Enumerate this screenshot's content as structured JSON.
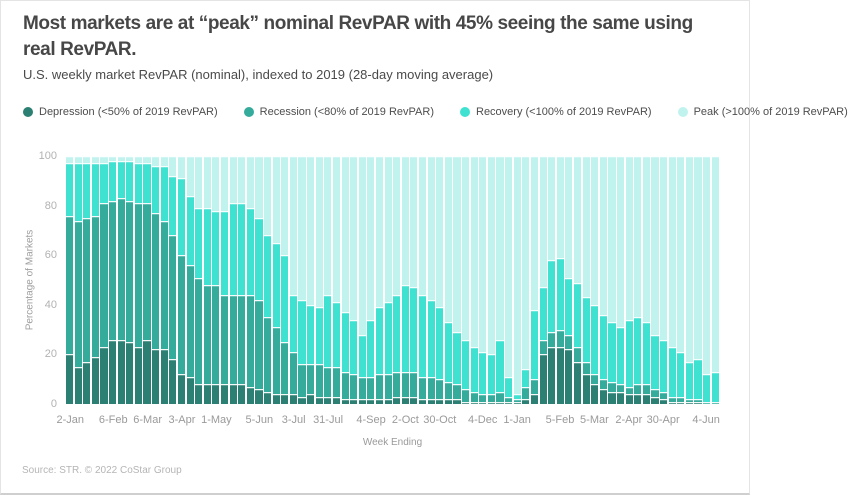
{
  "header": {
    "title_line1": "Most markets are at “peak” nominal RevPAR with 45% seeing the same using",
    "title_line2": "real RevPAR.",
    "subtitle": "U.S. weekly market RevPAR (nominal), indexed to 2019 (28-day moving average)"
  },
  "footer": {
    "source": "Source: STR. © 2022 CoStar Group"
  },
  "colors": {
    "depression": "#2b8073",
    "recession": "#35ab9c",
    "recovery": "#3fe2d1",
    "peak": "#c0f3ee",
    "title_text": "#474747",
    "axis_text": "#9a9a9a"
  },
  "chart_data": {
    "type": "bar",
    "stacked": true,
    "title": "U.S. weekly market RevPAR (nominal), indexed to 2019 (28-day moving average)",
    "xlabel": "Week Ending",
    "ylabel": "Percentage of Markets",
    "ylim": [
      0,
      100
    ],
    "yticks": [
      0,
      20,
      40,
      60,
      80,
      100
    ],
    "grid": false,
    "legend_position": "top",
    "num_bars": 76,
    "x_tick_labels": [
      {
        "label": "2-Jan",
        "index": 0
      },
      {
        "label": "6-Feb",
        "index": 5
      },
      {
        "label": "6-Mar",
        "index": 9
      },
      {
        "label": "3-Apr",
        "index": 13
      },
      {
        "label": "1-May",
        "index": 17
      },
      {
        "label": "5-Jun",
        "index": 22
      },
      {
        "label": "3-Jul",
        "index": 26
      },
      {
        "label": "31-Jul",
        "index": 30
      },
      {
        "label": "4-Sep",
        "index": 35
      },
      {
        "label": "2-Oct",
        "index": 39
      },
      {
        "label": "30-Oct",
        "index": 43
      },
      {
        "label": "4-Dec",
        "index": 48
      },
      {
        "label": "1-Jan",
        "index": 52
      },
      {
        "label": "5-Feb",
        "index": 57
      },
      {
        "label": "5-Mar",
        "index": 61
      },
      {
        "label": "2-Apr",
        "index": 65
      },
      {
        "label": "30-Apr",
        "index": 69
      },
      {
        "label": "4-Jun",
        "index": 74
      }
    ],
    "series": [
      {
        "name": "Depression (<50% of 2019 RevPAR)",
        "color": "#2b8073",
        "values": [
          20,
          15,
          17,
          19,
          23,
          26,
          26,
          25,
          23,
          26,
          22,
          22,
          18,
          12,
          11,
          8,
          8,
          8,
          8,
          8,
          8,
          7,
          6,
          5,
          4,
          4,
          4,
          3,
          4,
          3,
          3,
          3,
          2,
          2,
          2,
          2,
          2,
          2,
          3,
          3,
          3,
          2,
          2,
          2,
          2,
          2,
          1,
          1,
          1,
          1,
          1,
          1,
          1,
          2,
          4,
          20,
          23,
          23,
          22,
          17,
          12,
          8,
          6,
          5,
          5,
          4,
          4,
          4,
          3,
          2,
          1,
          1,
          1,
          1,
          0,
          0
        ]
      },
      {
        "name": "Recession (<80% of 2019 RevPAR)",
        "color": "#35ab9c",
        "values": [
          56,
          59,
          58,
          57,
          58,
          56,
          57,
          57,
          58,
          55,
          55,
          52,
          50,
          48,
          45,
          43,
          40,
          40,
          36,
          36,
          36,
          37,
          36,
          30,
          27,
          21,
          17,
          13,
          12,
          13,
          12,
          12,
          11,
          10,
          9,
          9,
          10,
          10,
          10,
          10,
          10,
          9,
          9,
          8,
          7,
          6,
          5,
          4,
          3,
          3,
          4,
          2,
          1,
          5,
          6,
          6,
          6,
          7,
          6,
          6,
          5,
          4,
          4,
          4,
          3,
          3,
          4,
          4,
          3,
          3,
          2,
          2,
          1,
          1,
          1,
          1
        ]
      },
      {
        "name": "Recovery (<100% of 2019 RevPAR)",
        "color": "#3fe2d1",
        "values": [
          21,
          23,
          22,
          21,
          16,
          16,
          15,
          16,
          16,
          16,
          19,
          22,
          24,
          31,
          28,
          28,
          31,
          30,
          34,
          37,
          37,
          35,
          33,
          33,
          34,
          35,
          23,
          26,
          24,
          23,
          29,
          26,
          24,
          22,
          17,
          23,
          27,
          29,
          31,
          35,
          34,
          33,
          31,
          29,
          24,
          21,
          20,
          18,
          17,
          16,
          21,
          8,
          2,
          7,
          28,
          21,
          29,
          29,
          23,
          26,
          26,
          28,
          26,
          24,
          23,
          27,
          27,
          25,
          22,
          21,
          20,
          18,
          15,
          16,
          11,
          12
        ]
      },
      {
        "name": "Peak (>100% of 2019 RevPAR)",
        "color": "#c0f3ee",
        "values": [
          3,
          3,
          3,
          3,
          3,
          2,
          2,
          2,
          3,
          3,
          4,
          4,
          8,
          9,
          16,
          21,
          21,
          22,
          22,
          19,
          19,
          21,
          25,
          32,
          35,
          40,
          56,
          58,
          60,
          61,
          56,
          59,
          63,
          66,
          72,
          66,
          61,
          59,
          56,
          52,
          53,
          56,
          58,
          61,
          67,
          71,
          74,
          77,
          79,
          80,
          74,
          89,
          96,
          86,
          62,
          53,
          42,
          41,
          49,
          51,
          57,
          60,
          64,
          67,
          69,
          66,
          65,
          67,
          72,
          74,
          77,
          79,
          83,
          82,
          88,
          87
        ]
      }
    ]
  }
}
